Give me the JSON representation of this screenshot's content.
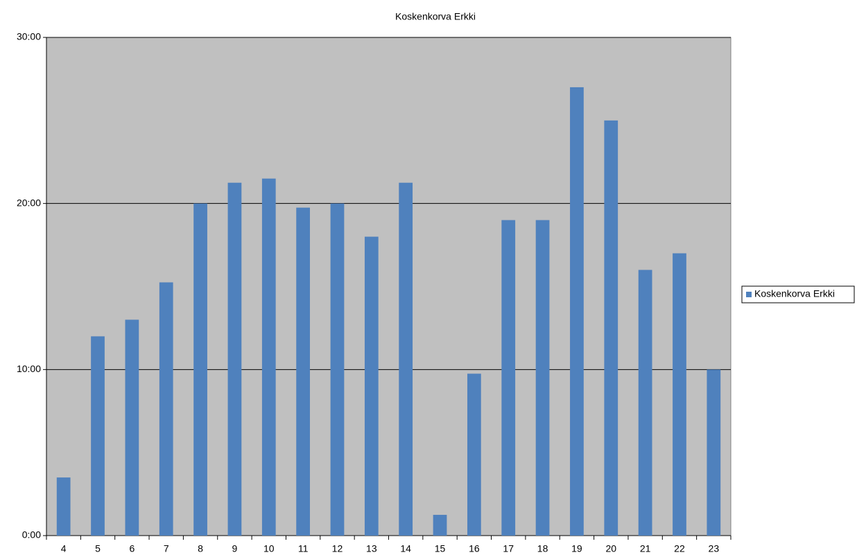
{
  "chart_data": {
    "type": "bar",
    "title": "Koskenkorva Erkki",
    "categories": [
      "4",
      "5",
      "6",
      "7",
      "8",
      "9",
      "10",
      "11",
      "12",
      "13",
      "14",
      "15",
      "16",
      "17",
      "18",
      "19",
      "20",
      "21",
      "22",
      "23"
    ],
    "series": [
      {
        "name": "Koskenkorva Erkki",
        "color": "#4f81bd",
        "values": [
          3.5,
          12,
          13,
          15.25,
          20,
          21.25,
          21.5,
          19.75,
          20,
          18,
          21.25,
          1.25,
          9.75,
          19,
          19,
          27,
          25,
          16,
          17,
          10
        ]
      }
    ],
    "ylim": [
      0,
      30
    ],
    "yticks": [
      {
        "value": 0,
        "label": "0:00"
      },
      {
        "value": 10,
        "label": "10:00"
      },
      {
        "value": 20,
        "label": "20:00"
      },
      {
        "value": 30,
        "label": "30:00"
      }
    ],
    "grid": true,
    "legend": "right"
  }
}
